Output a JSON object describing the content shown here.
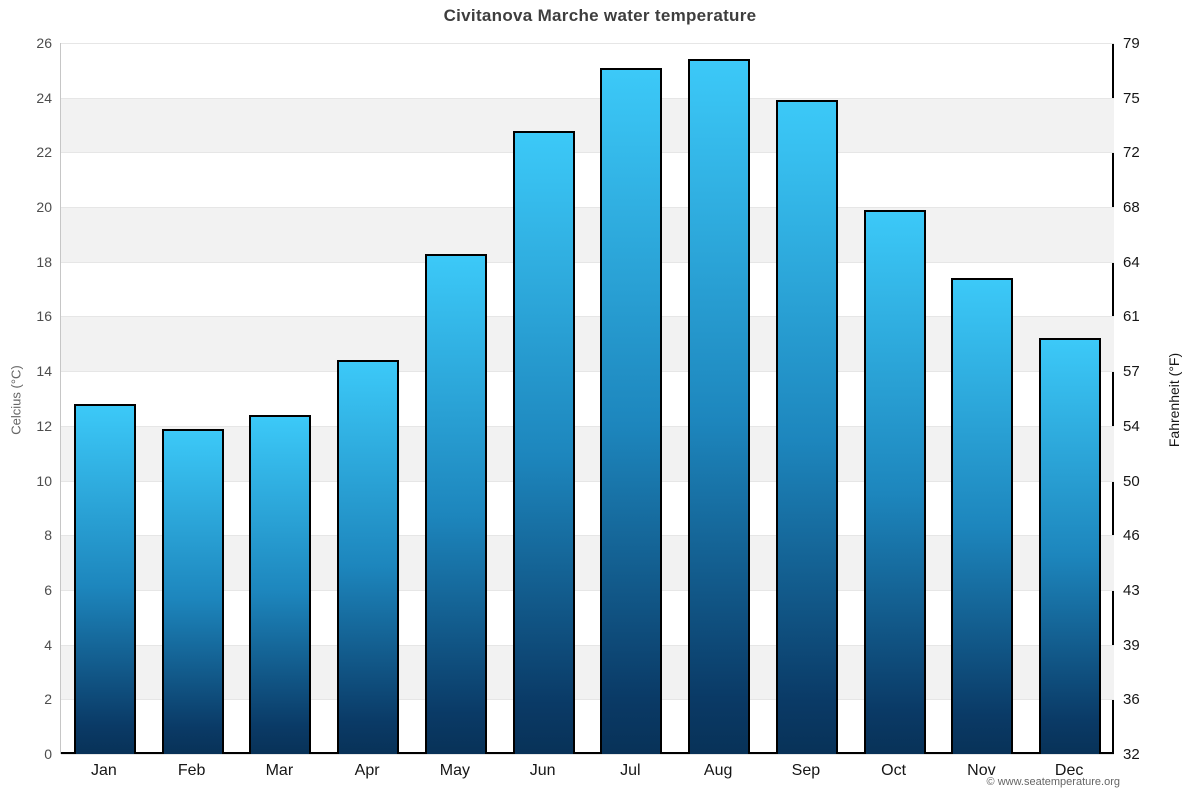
{
  "header": {
    "title": "Civitanova Marche water temperature"
  },
  "footer": {
    "credit": "© www.seatemperature.org"
  },
  "chart_data": {
    "type": "bar",
    "title": "Civitanova Marche water temperature",
    "categories": [
      "Jan",
      "Feb",
      "Mar",
      "Apr",
      "May",
      "Jun",
      "Jul",
      "Aug",
      "Sep",
      "Oct",
      "Nov",
      "Dec"
    ],
    "values": [
      12.8,
      11.9,
      12.4,
      14.4,
      18.3,
      22.8,
      25.1,
      25.4,
      23.9,
      19.9,
      17.4,
      15.2
    ],
    "series_name": "Water temperature (°C)",
    "xlabel": "",
    "ylabel_left": "Celcius (°C)",
    "ylabel_right": "Fahrenheit (°F)",
    "ylim": [
      0,
      26
    ],
    "yticks_celsius": [
      26,
      24,
      22,
      20,
      18,
      16,
      14,
      12,
      10,
      8,
      6,
      4,
      2,
      0
    ],
    "yticks_fahrenheit": [
      79,
      75,
      72,
      68,
      64,
      61,
      57,
      54,
      50,
      46,
      43,
      39,
      36,
      32
    ],
    "grid": "horizontal gridlines with alternating white/gray bands every 2°C",
    "legend_position": "none",
    "colors": {
      "bar_gradient_top": "#3cc9f8",
      "bar_gradient_bottom": "#083258",
      "bar_border": "#000000",
      "band_fill": "#f2f2f2",
      "gridline": "#e6e6e6",
      "title_text": "#3e3e3e",
      "left_tick_text": "#4d4d4d",
      "right_tick_text": "#161616",
      "axis_line_bottom": "#000000"
    }
  }
}
